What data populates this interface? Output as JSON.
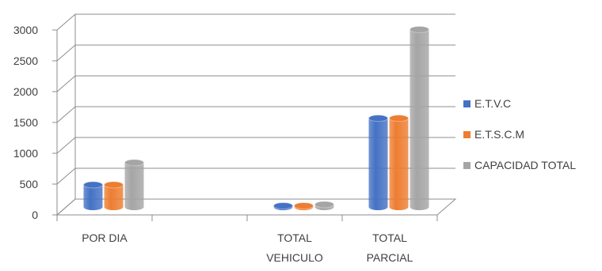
{
  "chart_data": {
    "type": "bar",
    "title": "",
    "xlabel": "",
    "ylabel": "",
    "ylim": [
      0,
      3000
    ],
    "yticks": [
      0,
      500,
      1000,
      1500,
      2000,
      2500,
      3000
    ],
    "grid": true,
    "legend_position": "right",
    "categories": [
      [
        "POR DIA"
      ],
      [],
      [
        "TOTAL",
        "VEHICULO"
      ],
      [
        "TOTAL",
        "PARCIAL"
      ]
    ],
    "series": [
      {
        "name": "E.T.V.C",
        "color": "#4472C4",
        "values": [
          360,
          null,
          20,
          1440
        ]
      },
      {
        "name": "E.T.S.C.M",
        "color": "#ED7D31",
        "values": [
          360,
          null,
          20,
          1440
        ]
      },
      {
        "name": "CAPACIDAD TOTAL",
        "color": "#A5A5A5",
        "values": [
          720,
          null,
          40,
          2880
        ]
      }
    ]
  }
}
